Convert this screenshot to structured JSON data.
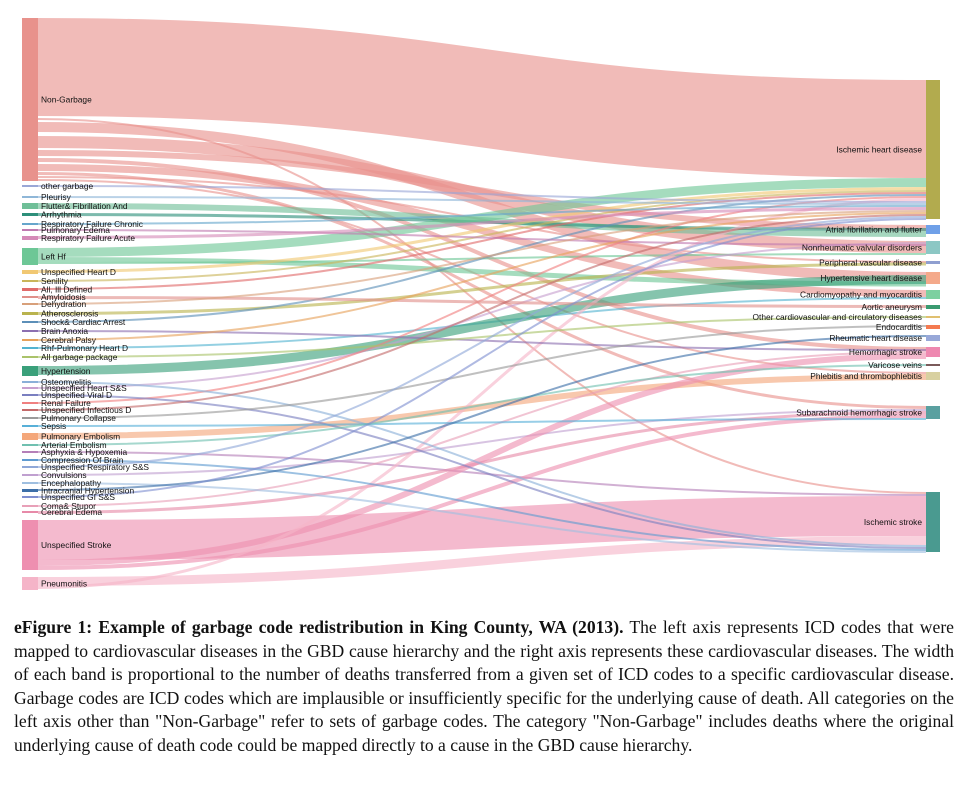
{
  "diagram": {
    "type": "sankey",
    "left_nodes": [
      {
        "label": "Non-Garbage",
        "color": "#e8928c"
      },
      {
        "label": "other garbage",
        "color": "#9aa7d6"
      },
      {
        "label": "Pleurisy",
        "color": "#8fb7d8"
      },
      {
        "label": "Flutter& Fibrillation And",
        "color": "#6fbf98"
      },
      {
        "label": "Arrhythmia",
        "color": "#2d8f7a"
      },
      {
        "label": "Respiratory Failure Chronic",
        "color": "#66a6cc"
      },
      {
        "label": "Pulmonary Edema",
        "color": "#c07ab0"
      },
      {
        "label": "Respiratory Failure Acute",
        "color": "#d58ab8"
      },
      {
        "label": "Left Hf",
        "color": "#6dc796"
      },
      {
        "label": "Unspecified Heart D",
        "color": "#f1c873"
      },
      {
        "label": "Senility",
        "color": "#c9b55a"
      },
      {
        "label": "All, Ill Defined",
        "color": "#e06b6b"
      },
      {
        "label": "Amyloidosis",
        "color": "#e0908a"
      },
      {
        "label": "Dehydration",
        "color": "#d8a07a"
      },
      {
        "label": "Atherosclerosis",
        "color": "#b9b34e"
      },
      {
        "label": "Shock& Cardiac Arrest",
        "color": "#5c8fb8"
      },
      {
        "label": "Brain Anoxia",
        "color": "#8c6fb0"
      },
      {
        "label": "Cerebral Palsy",
        "color": "#e7a15a"
      },
      {
        "label": "Rhf-Pulmonary Heart D",
        "color": "#53b3d0"
      },
      {
        "label": "All garbage package",
        "color": "#aac36a"
      },
      {
        "label": "Hypertension",
        "color": "#3aa07a"
      },
      {
        "label": "Osteomyelitis",
        "color": "#8ab0d8"
      },
      {
        "label": "Unspecified Heart S&S",
        "color": "#c7a0cf"
      },
      {
        "label": "Unspecified Viral D",
        "color": "#7a7fc0"
      },
      {
        "label": "Renal Failure",
        "color": "#f08080"
      },
      {
        "label": "Unspecified Infectious D",
        "color": "#c46a6a"
      },
      {
        "label": "Pulmonary Collapse",
        "color": "#9a9a9a"
      },
      {
        "label": "Sepsis",
        "color": "#58b0d8"
      },
      {
        "label": "Pulmonary Embolism",
        "color": "#f4a77a"
      },
      {
        "label": "Arterial Embolism",
        "color": "#70c0b0"
      },
      {
        "label": "Asphyxia & Hypoxemia",
        "color": "#b57fb8"
      },
      {
        "label": "Compression Of Brain",
        "color": "#5f9bd0"
      },
      {
        "label": "Unspecified Respiratory S&S",
        "color": "#8fa8d8"
      },
      {
        "label": "Convulsions",
        "color": "#c0a0d0"
      },
      {
        "label": "Encephalopathy",
        "color": "#9fbfe0"
      },
      {
        "label": "Intracranial Hypertension",
        "color": "#3d6fa8"
      },
      {
        "label": "Unspecified GI S&S",
        "color": "#7f8fd0"
      },
      {
        "label": "Coma& Stupor",
        "color": "#e8a0b8"
      },
      {
        "label": "Cerebral Edema",
        "color": "#e78aa8"
      },
      {
        "label": "Unspecified Stroke",
        "color": "#ee8fb0"
      },
      {
        "label": "Pneumonitis",
        "color": "#f5b4c8"
      }
    ],
    "right_nodes": [
      {
        "label": "Ischemic heart disease",
        "color": "#b2ab4e"
      },
      {
        "label": "Atrial fibrillation and flutter",
        "color": "#6fa0e8"
      },
      {
        "label": "Nonrheumatic valvular disorders",
        "color": "#8cc7c4"
      },
      {
        "label": "Peripheral vascular disease",
        "color": "#8f9fd0"
      },
      {
        "label": "Hypertensive heart disease",
        "color": "#f4a98a"
      },
      {
        "label": "Cardiomyopathy and myocarditis",
        "color": "#7dd0a0"
      },
      {
        "label": "Aortic aneurysm",
        "color": "#3a9a70"
      },
      {
        "label": "Other cardiovascular and circulatory diseases",
        "color": "#e0c070"
      },
      {
        "label": "Endocarditis",
        "color": "#f47a50"
      },
      {
        "label": "Rheumatic heart disease",
        "color": "#98a8d8"
      },
      {
        "label": "Hemorrhagic stroke",
        "color": "#ee88b0"
      },
      {
        "label": "Varicose veins",
        "color": "#7a5a5a"
      },
      {
        "label": "Phlebitis and thrombophlebitis",
        "color": "#d8d0a0"
      },
      {
        "label": "Subarachnoid hemorrhagic stroke",
        "color": "#5aa0a0"
      },
      {
        "label": "Ischemic stroke",
        "color": "#4a9a90"
      }
    ]
  },
  "caption": {
    "label": "eFigure 1: Example of garbage code redistribution in King County, WA (2013).",
    "text": "The left axis represents ICD codes that were mapped to cardiovascular diseases in the GBD cause hierarchy and the right axis represents these cardiovascular diseases. The width of each band is proportional to the number of deaths transferred from a given set of ICD codes to a specific cardiovascular disease. Garbage codes are ICD codes which are implausible or insufficiently specific for the underlying cause of death. All categories on the left axis other than \"Non-Garbage\" refer to sets of garbage codes. The category \"Non-Garbage\" includes deaths where the original underlying cause of death code could be mapped directly to a cause in the GBD cause hierarchy."
  }
}
